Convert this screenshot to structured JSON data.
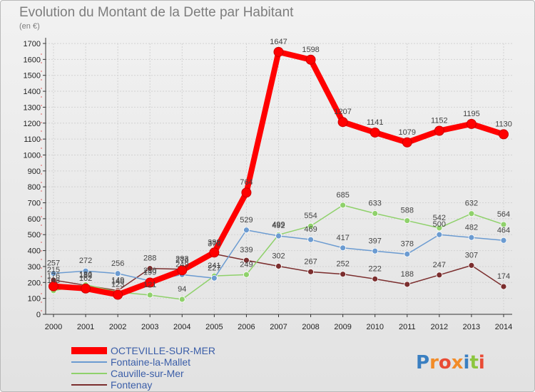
{
  "chart_data": {
    "type": "line",
    "title": "Evolution du Montant de la Dette par Habitant",
    "subtitle": "(en €)",
    "x": [
      "2000",
      "2001",
      "2002",
      "2003",
      "2004",
      "2005",
      "2006",
      "2007",
      "2008",
      "2009",
      "2010",
      "2011",
      "2012",
      "2013",
      "2014"
    ],
    "ylim": [
      0,
      1700
    ],
    "yticks": [
      0,
      100,
      200,
      300,
      400,
      500,
      600,
      700,
      800,
      900,
      1000,
      1100,
      1200,
      1300,
      1400,
      1500,
      1600,
      1700
    ],
    "grid": true,
    "legend": "bottom-left",
    "series": [
      {
        "name": "OCTEVILLE-SUR-MER",
        "color": "#ff0000",
        "values": [
          176,
          162,
          123,
          199,
          276,
          388,
          764,
          1647,
          1598,
          1207,
          1141,
          1079,
          1152,
          1195,
          1130
        ]
      },
      {
        "name": "Fontaine-la-Mallet",
        "color": "#6b9bd1",
        "values": [
          257,
          272,
          256,
          210,
          249,
          227,
          529,
          492,
          469,
          417,
          397,
          378,
          500,
          482,
          464
        ]
      },
      {
        "name": "Cauville-sur-Mer",
        "color": "#8fd16b",
        "values": [
          148,
          186,
          140,
          121,
          94,
          241,
          249,
          499,
          554,
          685,
          633,
          588,
          542,
          632,
          564
        ]
      },
      {
        "name": "Fontenay",
        "color": "#7b2e2e",
        "values": [
          215,
          182,
          149,
          288,
          283,
          379,
          339,
          302,
          267,
          252,
          222,
          188,
          247,
          307,
          174
        ]
      }
    ]
  },
  "branding": {
    "logo_text": "Proxiti",
    "letters": [
      "P",
      "r",
      "o",
      "x",
      "i",
      "t",
      "i"
    ],
    "colors": [
      "#3a7fc1",
      "#f28c28",
      "#e94b35",
      "#f28c28",
      "#3a7fc1",
      "#8cc63f",
      "#e94b35"
    ]
  }
}
